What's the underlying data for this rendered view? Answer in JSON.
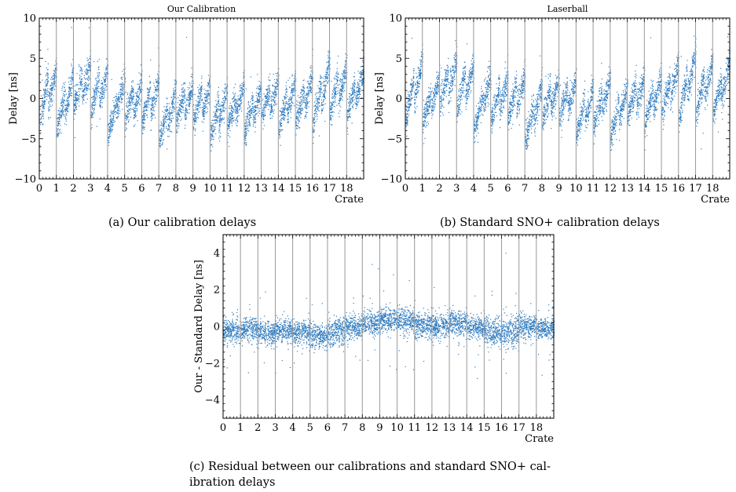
{
  "figure": {
    "captions": {
      "a": "(a) Our calibration delays",
      "b": "(b) Standard SNO+ calibration delays",
      "c": "(c) Residual between our calibrations and standard SNO+ cal-ibration delays"
    }
  },
  "chart_data": [
    {
      "id": "a",
      "type": "scatter",
      "title": "Our Calibration",
      "xlabel": "Crate",
      "ylabel": "Delay [ns]",
      "xlim": [
        0,
        19
      ],
      "ylim": [
        -10,
        10
      ],
      "xticks": [
        0,
        1,
        2,
        3,
        4,
        5,
        6,
        7,
        8,
        9,
        10,
        11,
        12,
        13,
        14,
        15,
        16,
        17,
        18
      ],
      "yticks": [
        -10,
        -5,
        0,
        5,
        10
      ],
      "grid": false,
      "crate_boundaries": [
        1,
        2,
        3,
        4,
        5,
        6,
        7,
        8,
        9,
        10,
        11,
        12,
        13,
        14,
        15,
        16,
        17,
        18
      ],
      "point_color": "#2f7bbf",
      "boundary_color": "#999999",
      "series_by_crate": [
        {
          "crate": 0,
          "sawtooth_segments": [
            {
              "x": [
                0.0,
                0.5
              ],
              "y_start": -3.5,
              "y_end": 3.0
            },
            {
              "x": [
                0.5,
                1.0
              ],
              "y_start": -0.5,
              "y_end": 4.0
            }
          ]
        },
        {
          "crate": 1,
          "sawtooth_segments": [
            {
              "x": [
                1.0,
                1.5
              ],
              "y_start": -4.0,
              "y_end": 1.0
            },
            {
              "x": [
                1.5,
                2.0
              ],
              "y_start": -2.0,
              "y_end": 3.5
            }
          ]
        },
        {
          "crate": 2,
          "sawtooth_segments": [
            {
              "x": [
                2.0,
                2.5
              ],
              "y_start": -1.0,
              "y_end": 3.0
            },
            {
              "x": [
                2.5,
                3.0
              ],
              "y_start": 0.0,
              "y_end": 4.5
            }
          ]
        },
        {
          "crate": 3,
          "sawtooth_segments": [
            {
              "x": [
                3.0,
                3.5
              ],
              "y_start": -2.0,
              "y_end": 3.0
            },
            {
              "x": [
                3.5,
                4.0
              ],
              "y_start": -0.5,
              "y_end": 4.0
            }
          ]
        },
        {
          "crate": 4,
          "sawtooth_segments": [
            {
              "x": [
                4.0,
                4.5
              ],
              "y_start": -4.5,
              "y_end": -0.5
            },
            {
              "x": [
                4.5,
                5.0
              ],
              "y_start": -1.5,
              "y_end": 2.5
            }
          ]
        },
        {
          "crate": 5,
          "sawtooth_segments": [
            {
              "x": [
                5.0,
                5.5
              ],
              "y_start": -3.0,
              "y_end": 1.0
            },
            {
              "x": [
                5.5,
                6.0
              ],
              "y_start": -2.0,
              "y_end": 2.5
            }
          ]
        },
        {
          "crate": 6,
          "sawtooth_segments": [
            {
              "x": [
                6.0,
                6.5
              ],
              "y_start": -3.0,
              "y_end": 1.5
            },
            {
              "x": [
                6.5,
                7.0
              ],
              "y_start": -2.0,
              "y_end": 2.5
            }
          ]
        },
        {
          "crate": 7,
          "sawtooth_segments": [
            {
              "x": [
                7.0,
                7.5
              ],
              "y_start": -5.5,
              "y_end": -1.0
            },
            {
              "x": [
                7.5,
                8.0
              ],
              "y_start": -3.5,
              "y_end": 1.5
            }
          ]
        },
        {
          "crate": 8,
          "sawtooth_segments": [
            {
              "x": [
                8.0,
                8.5
              ],
              "y_start": -3.0,
              "y_end": 1.0
            },
            {
              "x": [
                8.5,
                9.0
              ],
              "y_start": -2.0,
              "y_end": 2.0
            }
          ]
        },
        {
          "crate": 9,
          "sawtooth_segments": [
            {
              "x": [
                9.0,
                9.5
              ],
              "y_start": -3.0,
              "y_end": 1.0
            },
            {
              "x": [
                9.5,
                10.0
              ],
              "y_start": -2.0,
              "y_end": 2.0
            }
          ]
        },
        {
          "crate": 10,
          "sawtooth_segments": [
            {
              "x": [
                10.0,
                10.5
              ],
              "y_start": -5.0,
              "y_end": -0.5
            },
            {
              "x": [
                10.5,
                11.0
              ],
              "y_start": -3.0,
              "y_end": 1.5
            }
          ]
        },
        {
          "crate": 11,
          "sawtooth_segments": [
            {
              "x": [
                11.0,
                11.5
              ],
              "y_start": -3.5,
              "y_end": 0.0
            },
            {
              "x": [
                11.5,
                12.0
              ],
              "y_start": -2.0,
              "y_end": 2.0
            }
          ]
        },
        {
          "crate": 12,
          "sawtooth_segments": [
            {
              "x": [
                12.0,
                12.5
              ],
              "y_start": -4.5,
              "y_end": 0.0
            },
            {
              "x": [
                12.5,
                13.0
              ],
              "y_start": -2.5,
              "y_end": 1.5
            }
          ]
        },
        {
          "crate": 13,
          "sawtooth_segments": [
            {
              "x": [
                13.0,
                13.5
              ],
              "y_start": -2.5,
              "y_end": 1.5
            },
            {
              "x": [
                13.5,
                14.0
              ],
              "y_start": -1.5,
              "y_end": 2.5
            }
          ]
        },
        {
          "crate": 14,
          "sawtooth_segments": [
            {
              "x": [
                14.0,
                14.5
              ],
              "y_start": -4.0,
              "y_end": 0.5
            },
            {
              "x": [
                14.5,
                15.0
              ],
              "y_start": -2.0,
              "y_end": 2.5
            }
          ]
        },
        {
          "crate": 15,
          "sawtooth_segments": [
            {
              "x": [
                15.0,
                15.5
              ],
              "y_start": -3.0,
              "y_end": 1.0
            },
            {
              "x": [
                15.5,
                16.0
              ],
              "y_start": -1.5,
              "y_end": 3.5
            }
          ]
        },
        {
          "crate": 16,
          "sawtooth_segments": [
            {
              "x": [
                16.0,
                16.5
              ],
              "y_start": -3.5,
              "y_end": 2.0
            },
            {
              "x": [
                16.5,
                17.0
              ],
              "y_start": -1.0,
              "y_end": 5.0
            }
          ]
        },
        {
          "crate": 17,
          "sawtooth_segments": [
            {
              "x": [
                17.0,
                17.5
              ],
              "y_start": -2.0,
              "y_end": 3.0
            },
            {
              "x": [
                17.5,
                18.0
              ],
              "y_start": -0.5,
              "y_end": 4.5
            }
          ]
        },
        {
          "crate": 18,
          "sawtooth_segments": [
            {
              "x": [
                18.0,
                18.5
              ],
              "y_start": -2.5,
              "y_end": 2.0
            },
            {
              "x": [
                18.5,
                19.0
              ],
              "y_start": -0.5,
              "y_end": 4.0
            }
          ]
        }
      ]
    },
    {
      "id": "b",
      "type": "scatter",
      "title": "Laserball",
      "xlabel": "Crate",
      "ylabel": "Delay [ns]",
      "xlim": [
        0,
        19
      ],
      "ylim": [
        -10,
        10
      ],
      "xticks": [
        0,
        1,
        2,
        3,
        4,
        5,
        6,
        7,
        8,
        9,
        10,
        11,
        12,
        13,
        14,
        15,
        16,
        17,
        18
      ],
      "yticks": [
        -10,
        -5,
        0,
        5,
        10
      ],
      "grid": false,
      "crate_boundaries": [
        1,
        2,
        3,
        4,
        5,
        6,
        7,
        8,
        9,
        10,
        11,
        12,
        13,
        14,
        15,
        16,
        17,
        18
      ],
      "point_color": "#2f7bbf",
      "boundary_color": "#999999",
      "series_by_crate": [
        {
          "crate": 0,
          "sawtooth_segments": [
            {
              "x": [
                0.0,
                0.5
              ],
              "y_start": -3.0,
              "y_end": 3.0
            },
            {
              "x": [
                0.5,
                1.0
              ],
              "y_start": 0.0,
              "y_end": 5.0
            }
          ]
        },
        {
          "crate": 1,
          "sawtooth_segments": [
            {
              "x": [
                1.0,
                1.5
              ],
              "y_start": -3.5,
              "y_end": 1.0
            },
            {
              "x": [
                1.5,
                2.0
              ],
              "y_start": -1.5,
              "y_end": 3.0
            }
          ]
        },
        {
          "crate": 2,
          "sawtooth_segments": [
            {
              "x": [
                2.0,
                2.5
              ],
              "y_start": -1.0,
              "y_end": 3.5
            },
            {
              "x": [
                2.5,
                3.0
              ],
              "y_start": 0.5,
              "y_end": 5.0
            }
          ]
        },
        {
          "crate": 3,
          "sawtooth_segments": [
            {
              "x": [
                3.0,
                3.5
              ],
              "y_start": -1.5,
              "y_end": 3.5
            },
            {
              "x": [
                3.5,
                4.0
              ],
              "y_start": 0.0,
              "y_end": 4.5
            }
          ]
        },
        {
          "crate": 4,
          "sawtooth_segments": [
            {
              "x": [
                4.0,
                4.5
              ],
              "y_start": -4.0,
              "y_end": 0.0
            },
            {
              "x": [
                4.5,
                5.0
              ],
              "y_start": -1.0,
              "y_end": 3.0
            }
          ]
        },
        {
          "crate": 5,
          "sawtooth_segments": [
            {
              "x": [
                5.0,
                5.5
              ],
              "y_start": -3.0,
              "y_end": 1.5
            },
            {
              "x": [
                5.5,
                6.0
              ],
              "y_start": -1.5,
              "y_end": 3.0
            }
          ]
        },
        {
          "crate": 6,
          "sawtooth_segments": [
            {
              "x": [
                6.0,
                6.5
              ],
              "y_start": -2.5,
              "y_end": 2.0
            },
            {
              "x": [
                6.5,
                7.0
              ],
              "y_start": -1.0,
              "y_end": 3.0
            }
          ]
        },
        {
          "crate": 7,
          "sawtooth_segments": [
            {
              "x": [
                7.0,
                7.5
              ],
              "y_start": -5.5,
              "y_end": -1.0
            },
            {
              "x": [
                7.5,
                8.0
              ],
              "y_start": -3.0,
              "y_end": 2.0
            }
          ]
        },
        {
          "crate": 8,
          "sawtooth_segments": [
            {
              "x": [
                8.0,
                8.5
              ],
              "y_start": -3.0,
              "y_end": 1.5
            },
            {
              "x": [
                8.5,
                9.0
              ],
              "y_start": -1.5,
              "y_end": 2.5
            }
          ]
        },
        {
          "crate": 9,
          "sawtooth_segments": [
            {
              "x": [
                9.0,
                9.5
              ],
              "y_start": -2.5,
              "y_end": 1.5
            },
            {
              "x": [
                9.5,
                10.0
              ],
              "y_start": -1.5,
              "y_end": 2.5
            }
          ]
        },
        {
          "crate": 10,
          "sawtooth_segments": [
            {
              "x": [
                10.0,
                10.5
              ],
              "y_start": -4.5,
              "y_end": 0.0
            },
            {
              "x": [
                10.5,
                11.0
              ],
              "y_start": -3.0,
              "y_end": 1.5
            }
          ]
        },
        {
          "crate": 11,
          "sawtooth_segments": [
            {
              "x": [
                11.0,
                11.5
              ],
              "y_start": -3.5,
              "y_end": 0.5
            },
            {
              "x": [
                11.5,
                12.0
              ],
              "y_start": -1.5,
              "y_end": 3.0
            }
          ]
        },
        {
          "crate": 12,
          "sawtooth_segments": [
            {
              "x": [
                12.0,
                12.5
              ],
              "y_start": -5.0,
              "y_end": -0.5
            },
            {
              "x": [
                12.5,
                13.0
              ],
              "y_start": -2.5,
              "y_end": 2.0
            }
          ]
        },
        {
          "crate": 13,
          "sawtooth_segments": [
            {
              "x": [
                13.0,
                13.5
              ],
              "y_start": -2.5,
              "y_end": 2.0
            },
            {
              "x": [
                13.5,
                14.0
              ],
              "y_start": -1.0,
              "y_end": 3.0
            }
          ]
        },
        {
          "crate": 14,
          "sawtooth_segments": [
            {
              "x": [
                14.0,
                14.5
              ],
              "y_start": -3.5,
              "y_end": 1.0
            },
            {
              "x": [
                14.5,
                15.0
              ],
              "y_start": -1.5,
              "y_end": 3.0
            }
          ]
        },
        {
          "crate": 15,
          "sawtooth_segments": [
            {
              "x": [
                15.0,
                15.5
              ],
              "y_start": -2.0,
              "y_end": 2.5
            },
            {
              "x": [
                15.5,
                16.0
              ],
              "y_start": 0.0,
              "y_end": 4.5
            }
          ]
        },
        {
          "crate": 16,
          "sawtooth_segments": [
            {
              "x": [
                16.0,
                16.5
              ],
              "y_start": -2.5,
              "y_end": 3.0
            },
            {
              "x": [
                16.5,
                17.0
              ],
              "y_start": 0.5,
              "y_end": 6.0
            }
          ]
        },
        {
          "crate": 17,
          "sawtooth_segments": [
            {
              "x": [
                17.0,
                17.5
              ],
              "y_start": -2.0,
              "y_end": 3.0
            },
            {
              "x": [
                17.5,
                18.0
              ],
              "y_start": 0.0,
              "y_end": 5.0
            }
          ]
        },
        {
          "crate": 18,
          "sawtooth_segments": [
            {
              "x": [
                18.0,
                18.5
              ],
              "y_start": -2.0,
              "y_end": 2.5
            },
            {
              "x": [
                18.5,
                19.0
              ],
              "y_start": 0.0,
              "y_end": 5.0
            }
          ]
        }
      ]
    },
    {
      "id": "c",
      "type": "scatter",
      "title": "",
      "xlabel": "Crate",
      "ylabel": "Our - Standard Delay [ns]",
      "xlim": [
        0,
        19
      ],
      "ylim": [
        -5,
        5
      ],
      "xticks": [
        0,
        1,
        2,
        3,
        4,
        5,
        6,
        7,
        8,
        9,
        10,
        11,
        12,
        13,
        14,
        15,
        16,
        17,
        18
      ],
      "yticks": [
        -4,
        -2,
        0,
        2,
        4
      ],
      "grid": false,
      "crate_boundaries": [
        1,
        2,
        3,
        4,
        5,
        6,
        7,
        8,
        9,
        10,
        11,
        12,
        13,
        14,
        15,
        16,
        17,
        18
      ],
      "point_color": "#2f7bbf",
      "boundary_color": "#999999",
      "crate_mean_residual": [
        -0.2,
        -0.1,
        -0.3,
        -0.2,
        -0.3,
        -0.5,
        -0.3,
        0.0,
        0.2,
        0.4,
        0.3,
        0.1,
        0.0,
        0.2,
        0.0,
        -0.3,
        -0.3,
        0.0,
        -0.1
      ],
      "crate_spread_residual": [
        0.6,
        0.6,
        0.6,
        0.6,
        0.6,
        0.6,
        0.7,
        0.6,
        0.6,
        0.6,
        0.6,
        0.6,
        0.6,
        0.6,
        0.6,
        0.7,
        0.8,
        0.6,
        0.5
      ]
    }
  ]
}
